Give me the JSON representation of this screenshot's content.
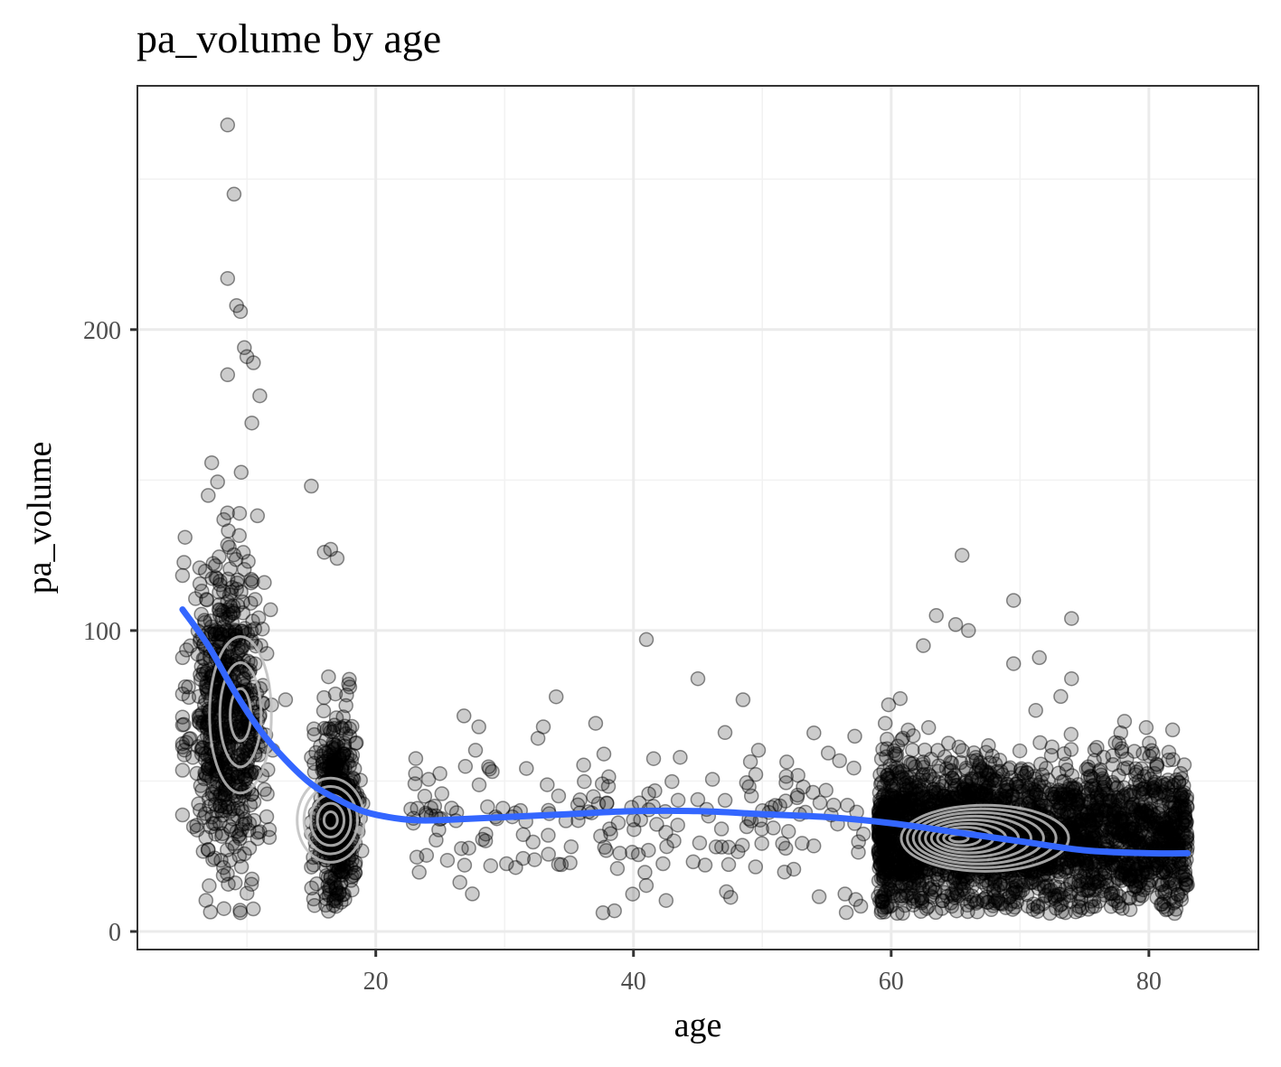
{
  "chart_data": {
    "type": "scatter",
    "title": "pa_volume by age",
    "xlabel": "age",
    "ylabel": "pa_volume",
    "xlim": [
      1.5,
      88.5
    ],
    "ylim": [
      -6,
      281
    ],
    "x_ticks": [
      20,
      40,
      60,
      80
    ],
    "y_ticks": [
      0,
      100,
      200
    ],
    "x_tick_labels": [
      "20",
      "40",
      "60",
      "80"
    ],
    "y_tick_labels": [
      "0",
      "100",
      "200"
    ],
    "grid": true,
    "legend": "none",
    "colors": {
      "points": "#000000",
      "smooth": "#3366ff",
      "density_contour": "#bebebe",
      "grid": "#ebebeb",
      "border": "#333333"
    },
    "point_alpha": 0.2,
    "clusters": [
      {
        "x_min": 5,
        "x_max": 12,
        "y_mean": 72,
        "y_sd": 26,
        "n": 700
      },
      {
        "x_min": 15,
        "x_max": 19,
        "y_mean": 40,
        "y_sd": 15,
        "n": 550
      },
      {
        "x_min": 22,
        "x_max": 58,
        "y_mean": 38,
        "y_sd": 13,
        "n": 200
      },
      {
        "x_min": 59,
        "x_max": 83,
        "y_mean": 32,
        "y_sd": 12,
        "n": 2800
      }
    ],
    "outliers": [
      [
        8.5,
        268
      ],
      [
        9,
        245
      ],
      [
        8.5,
        217
      ],
      [
        9.5,
        206
      ],
      [
        9.2,
        208
      ],
      [
        9.8,
        194
      ],
      [
        10,
        191
      ],
      [
        10.5,
        189
      ],
      [
        8.5,
        185
      ],
      [
        11,
        178
      ],
      [
        5.2,
        131
      ],
      [
        15,
        148
      ],
      [
        17,
        124
      ],
      [
        16.5,
        127
      ],
      [
        16,
        126
      ],
      [
        65.5,
        125
      ],
      [
        63.5,
        105
      ],
      [
        65,
        102
      ],
      [
        66,
        100
      ],
      [
        69.5,
        110
      ],
      [
        74,
        104
      ],
      [
        71.5,
        91
      ],
      [
        41,
        97
      ],
      [
        69.5,
        89
      ],
      [
        45,
        84
      ],
      [
        48.5,
        77
      ],
      [
        34,
        78
      ],
      [
        28,
        68
      ],
      [
        33,
        68
      ],
      [
        54,
        66
      ],
      [
        13,
        77
      ],
      [
        62.5,
        95
      ],
      [
        74,
        84
      ],
      [
        82,
        6
      ]
    ],
    "smooth": {
      "x": [
        5,
        7,
        9,
        11,
        13,
        15,
        17,
        19,
        21,
        23,
        25,
        30,
        35,
        40,
        45,
        50,
        55,
        60,
        65,
        70,
        75,
        80,
        83
      ],
      "y": [
        107,
        95,
        80,
        67,
        57,
        49,
        44,
        40,
        38,
        37,
        37,
        38,
        39,
        40,
        40,
        39,
        38,
        36,
        33,
        30,
        27,
        26,
        26
      ]
    },
    "density_centers": [
      {
        "x": 9.5,
        "y": 72,
        "rx": 2.4,
        "ry": 26,
        "levels": 3
      },
      {
        "x": 16.5,
        "y": 37,
        "rx": 2.6,
        "ry": 14,
        "levels": 5
      },
      {
        "x": 65,
        "y": 31,
        "rx": 6.5,
        "ry": 11,
        "levels": 9
      }
    ]
  }
}
